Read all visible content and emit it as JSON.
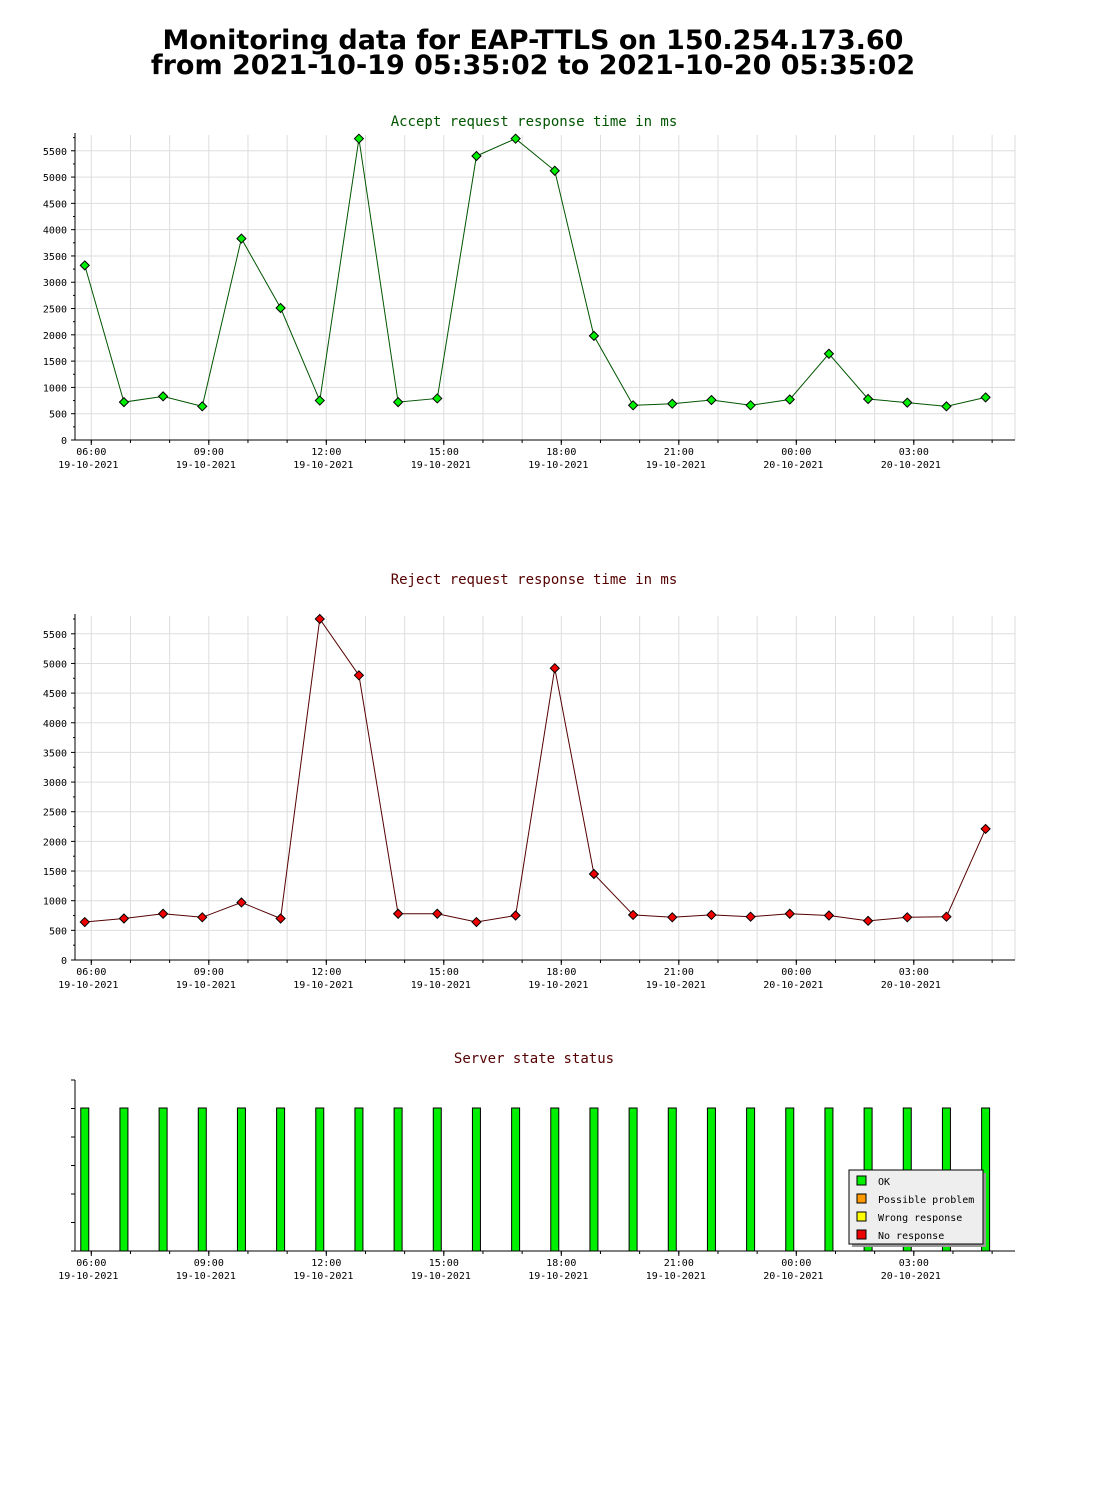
{
  "page": {
    "title_line1": "Monitoring data for EAP-TTLS on 150.254.173.60",
    "title_line2": "from 2021-10-19 05:35:02 to 2021-10-20 05:35:02"
  },
  "colors": {
    "accept_title": "#005500",
    "reject_title": "#550000",
    "status_title": "#550000",
    "accept_marker": "#00ee00",
    "reject_marker": "#ee0000",
    "accept_line": "#005500",
    "reject_line": "#550000",
    "ok": "#00ee00",
    "possible_problem": "#ff9900",
    "wrong_response": "#ffff00",
    "no_response": "#ee0000",
    "grid": "#dddddd"
  },
  "x_ticks": [
    {
      "time": "06:00",
      "date": "19-10-2021",
      "hour": 6
    },
    {
      "time": "09:00",
      "date": "19-10-2021",
      "hour": 9
    },
    {
      "time": "12:00",
      "date": "19-10-2021",
      "hour": 12
    },
    {
      "time": "15:00",
      "date": "19-10-2021",
      "hour": 15
    },
    {
      "time": "18:00",
      "date": "19-10-2021",
      "hour": 18
    },
    {
      "time": "21:00",
      "date": "19-10-2021",
      "hour": 21
    },
    {
      "time": "00:00",
      "date": "20-10-2021",
      "hour": 24
    },
    {
      "time": "03:00",
      "date": "20-10-2021",
      "hour": 27
    }
  ],
  "chart_data": [
    {
      "type": "line",
      "title": "Accept request response time in ms",
      "xlim": [
        "2021-10-19 05:35:02",
        "2021-10-20 05:35:02"
      ],
      "ylim": [
        0,
        5800
      ],
      "y_ticks": [
        0,
        500,
        1000,
        1500,
        2000,
        2500,
        3000,
        3500,
        4000,
        4500,
        5000,
        5500
      ],
      "grid": true,
      "x": [
        "2021-10-19 05:50",
        "2021-10-19 06:50",
        "2021-10-19 07:50",
        "2021-10-19 08:50",
        "2021-10-19 09:50",
        "2021-10-19 10:50",
        "2021-10-19 11:50",
        "2021-10-19 12:50",
        "2021-10-19 13:50",
        "2021-10-19 14:50",
        "2021-10-19 15:50",
        "2021-10-19 16:50",
        "2021-10-19 17:50",
        "2021-10-19 18:50",
        "2021-10-19 19:50",
        "2021-10-19 20:50",
        "2021-10-19 21:50",
        "2021-10-19 22:50",
        "2021-10-19 23:50",
        "2021-10-20 00:50",
        "2021-10-20 01:50",
        "2021-10-20 02:50",
        "2021-10-20 03:50",
        "2021-10-20 04:50"
      ],
      "values": [
        3320,
        720,
        830,
        640,
        3830,
        2510,
        750,
        5730,
        720,
        790,
        5400,
        5730,
        5120,
        1980,
        660,
        690,
        760,
        660,
        770,
        1640,
        780,
        710,
        640,
        810
      ]
    },
    {
      "type": "line",
      "title": "Reject request response time in ms",
      "xlim": [
        "2021-10-19 05:35:02",
        "2021-10-20 05:35:02"
      ],
      "ylim": [
        0,
        5800
      ],
      "y_ticks": [
        0,
        500,
        1000,
        1500,
        2000,
        2500,
        3000,
        3500,
        4000,
        4500,
        5000,
        5500
      ],
      "grid": true,
      "x": [
        "2021-10-19 05:50",
        "2021-10-19 06:50",
        "2021-10-19 07:50",
        "2021-10-19 08:50",
        "2021-10-19 09:50",
        "2021-10-19 10:50",
        "2021-10-19 11:50",
        "2021-10-19 12:50",
        "2021-10-19 13:50",
        "2021-10-19 14:50",
        "2021-10-19 15:50",
        "2021-10-19 16:50",
        "2021-10-19 17:50",
        "2021-10-19 18:50",
        "2021-10-19 19:50",
        "2021-10-19 20:50",
        "2021-10-19 21:50",
        "2021-10-19 22:50",
        "2021-10-19 23:50",
        "2021-10-20 00:50",
        "2021-10-20 01:50",
        "2021-10-20 02:50",
        "2021-10-20 03:50",
        "2021-10-20 04:50"
      ],
      "values": [
        640,
        700,
        780,
        720,
        970,
        700,
        5750,
        4800,
        780,
        780,
        640,
        750,
        4920,
        1450,
        760,
        720,
        760,
        730,
        780,
        750,
        660,
        720,
        730,
        2210
      ]
    },
    {
      "type": "bar",
      "title": "Server state status",
      "xlim": [
        "2021-10-19 05:35:02",
        "2021-10-20 05:35:02"
      ],
      "x": [
        "2021-10-19 05:50",
        "2021-10-19 06:50",
        "2021-10-19 07:50",
        "2021-10-19 08:50",
        "2021-10-19 09:50",
        "2021-10-19 10:50",
        "2021-10-19 11:50",
        "2021-10-19 12:50",
        "2021-10-19 13:50",
        "2021-10-19 14:50",
        "2021-10-19 15:50",
        "2021-10-19 16:50",
        "2021-10-19 17:50",
        "2021-10-19 18:50",
        "2021-10-19 19:50",
        "2021-10-19 20:50",
        "2021-10-19 21:50",
        "2021-10-19 22:50",
        "2021-10-19 23:50",
        "2021-10-20 00:50",
        "2021-10-20 01:50",
        "2021-10-20 02:50",
        "2021-10-20 03:50",
        "2021-10-20 04:50"
      ],
      "states": [
        "OK",
        "OK",
        "OK",
        "OK",
        "OK",
        "OK",
        "OK",
        "OK",
        "OK",
        "OK",
        "OK",
        "OK",
        "OK",
        "OK",
        "OK",
        "OK",
        "OK",
        "OK",
        "OK",
        "OK",
        "OK",
        "OK",
        "OK",
        "OK"
      ],
      "legend_position": "bottom-right",
      "legend": [
        "OK",
        "Possible problem",
        "Wrong response",
        "No response"
      ]
    }
  ]
}
